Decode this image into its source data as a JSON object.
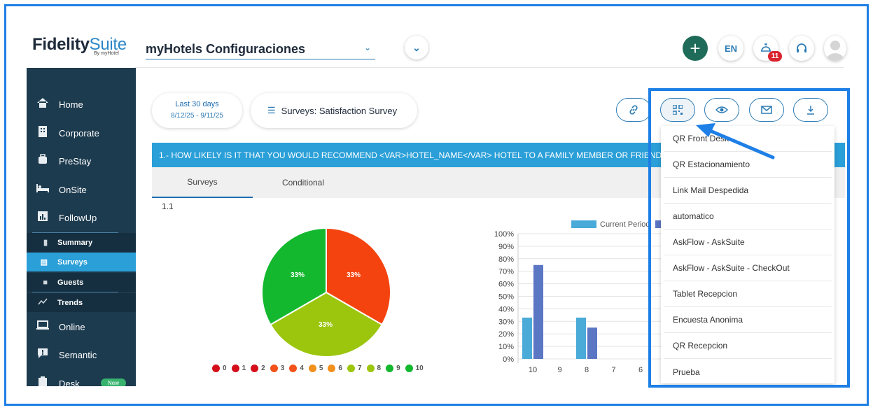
{
  "brand": {
    "name_bold": "Fidelity",
    "name_light": "Suite",
    "sub": "By myHotel"
  },
  "header": {
    "hotel": "myHotels Configuraciones",
    "lang": "EN",
    "notifications": "11"
  },
  "sidebar": {
    "items": [
      {
        "label": "Home"
      },
      {
        "label": "Corporate"
      },
      {
        "label": "PreStay"
      },
      {
        "label": "OnSite"
      },
      {
        "label": "FollowUp"
      },
      {
        "label": "Online"
      },
      {
        "label": "Semantic"
      },
      {
        "label": "Desk"
      }
    ],
    "sub_items": [
      {
        "label": "Summary"
      },
      {
        "label": "Surveys"
      },
      {
        "label": "Guests"
      },
      {
        "label": "Trends"
      }
    ],
    "new_badge": "New"
  },
  "filters": {
    "date_title": "Last 30 days",
    "date_range": "8/12/25 - 9/11/25",
    "survey": "Surveys: Satisfaction Survey"
  },
  "question": {
    "text": "1.- HOW LIKELY IS IT THAT YOU WOULD RECOMMEND <VAR>HOTEL_NAME</VAR> HOTEL TO A FAMILY MEMBER OR FRIEND?",
    "tabs": [
      "Surveys",
      "Conditional"
    ],
    "number": "1.1"
  },
  "pie": {
    "slices": [
      {
        "label": "33%",
        "value": 33.33,
        "color": "#f5430f"
      },
      {
        "label": "33%",
        "value": 33.33,
        "color": "#9cc60e"
      },
      {
        "label": "33%",
        "value": 33.34,
        "color": "#13b82e"
      }
    ],
    "legend": [
      {
        "label": "0",
        "color": "#d40f1b"
      },
      {
        "label": "1",
        "color": "#d40f1b"
      },
      {
        "label": "2",
        "color": "#d40f1b"
      },
      {
        "label": "3",
        "color": "#f2521a"
      },
      {
        "label": "4",
        "color": "#f2521a"
      },
      {
        "label": "5",
        "color": "#f2901e"
      },
      {
        "label": "6",
        "color": "#f2901e"
      },
      {
        "label": "7",
        "color": "#9cc60e"
      },
      {
        "label": "8",
        "color": "#9cc60e"
      },
      {
        "label": "9",
        "color": "#13b82e"
      },
      {
        "label": "10",
        "color": "#13b82e"
      }
    ]
  },
  "chart_data": {
    "type": "bar",
    "categories": [
      "10",
      "9",
      "8",
      "7",
      "6"
    ],
    "series": [
      {
        "name": "Current Period",
        "values": [
          33,
          0,
          33,
          0,
          0
        ],
        "color": "#4aabd9"
      },
      {
        "name": "",
        "values": [
          75,
          0,
          25,
          0,
          0
        ],
        "color": "#5b77c4"
      }
    ],
    "y_ticks": [
      "0%",
      "10%",
      "20%",
      "30%",
      "40%",
      "50%",
      "60%",
      "70%",
      "80%",
      "90%",
      "100%"
    ],
    "ylim": [
      0,
      100
    ],
    "legend_position": "top"
  },
  "qr_menu": {
    "items": [
      "QR Front Desk",
      "QR Estacionamiento",
      "Link Mail Despedida",
      "automatico",
      "AskFlow - AskSuite",
      "AskFlow - AskSuite - CheckOut",
      "Tablet Recepcion",
      "Encuesta Anonima",
      "QR Recepcion",
      "Prueba"
    ]
  }
}
